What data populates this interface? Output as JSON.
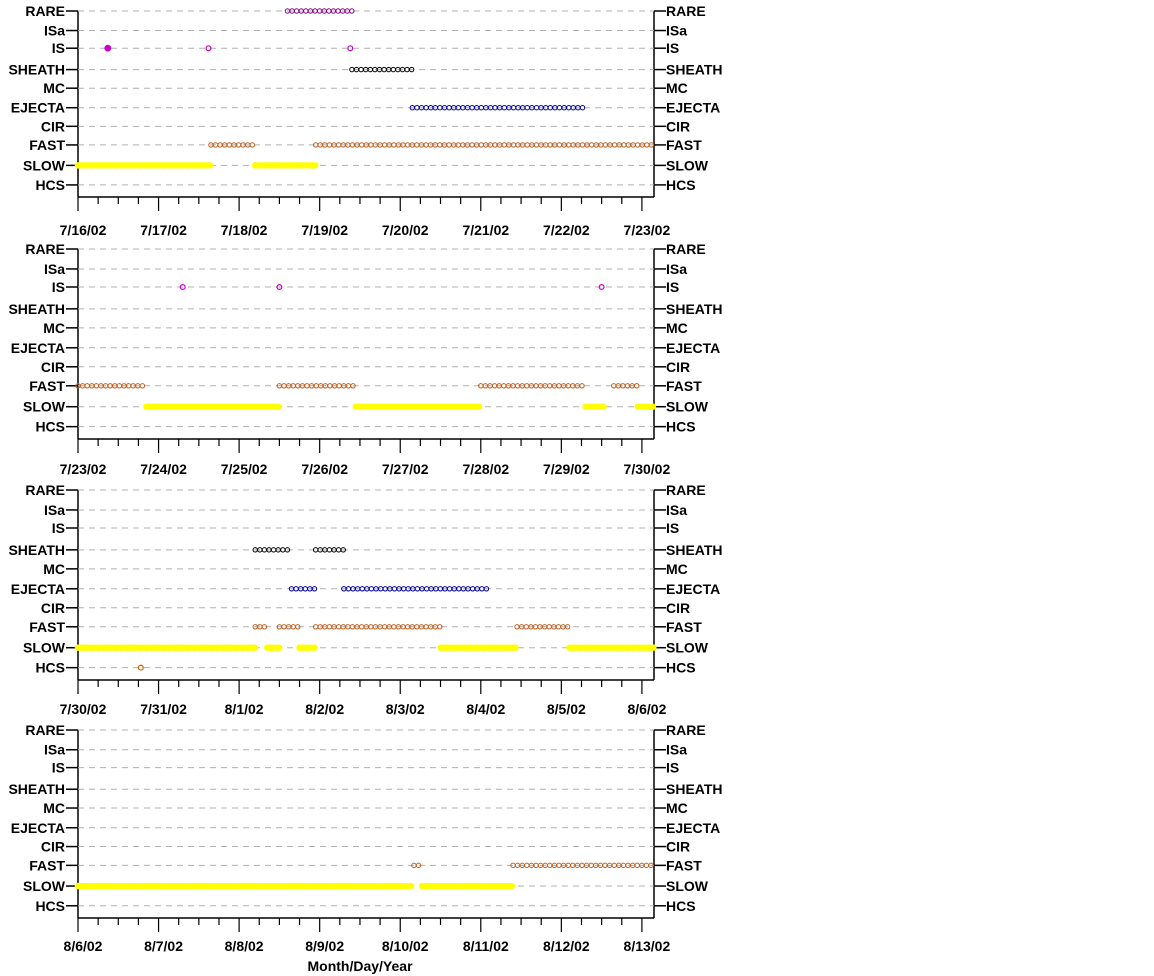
{
  "chart_data": {
    "type": "scatter",
    "categories": [
      "RARE",
      "ISa",
      "IS",
      "SHEATH",
      "MC",
      "EJECTA",
      "CIR",
      "FAST",
      "SLOW",
      "HCS"
    ],
    "xlabel": "Month/Day/Year",
    "grid": true,
    "colors": {
      "RARE": "#800080",
      "IS": "#cc00cc",
      "SHEATH": "#000000",
      "EJECTA": "#0000a0",
      "FAST": "#c06020",
      "SLOW": "#ffff00",
      "HCS": "#d06000"
    },
    "panels": [
      {
        "x_ticks": [
          "7/16/02",
          "7/17/02",
          "7/18/02",
          "7/19/02",
          "7/20/02",
          "7/21/02",
          "7/22/02",
          "7/23/02"
        ],
        "xlim_days": [
          0,
          7.15
        ],
        "series": [
          {
            "category": "RARE",
            "ranges": [
              [
                2.6,
                3.4
              ]
            ]
          },
          {
            "category": "IS",
            "points": [
              0.37
            ],
            "filled": true
          },
          {
            "category": "IS",
            "points": [
              1.62,
              3.38
            ]
          },
          {
            "category": "SHEATH",
            "ranges": [
              [
                3.4,
                4.15
              ]
            ]
          },
          {
            "category": "EJECTA",
            "ranges": [
              [
                4.15,
                6.3
              ]
            ]
          },
          {
            "category": "FAST",
            "ranges": [
              [
                1.65,
                2.2
              ],
              [
                2.95,
                7.15
              ]
            ]
          },
          {
            "category": "SLOW",
            "ranges": [
              [
                0.0,
                1.65
              ],
              [
                2.2,
                2.95
              ]
            ]
          }
        ]
      },
      {
        "x_ticks": [
          "7/23/02",
          "7/24/02",
          "7/25/02",
          "7/26/02",
          "7/27/02",
          "7/28/02",
          "7/29/02",
          "7/30/02"
        ],
        "xlim_days": [
          0,
          7.15
        ],
        "series": [
          {
            "category": "IS",
            "points": [
              1.3,
              2.5,
              6.5
            ]
          },
          {
            "category": "FAST",
            "ranges": [
              [
                0.0,
                0.85
              ],
              [
                2.5,
                3.45
              ],
              [
                5.0,
                6.3
              ],
              [
                6.65,
                6.95
              ]
            ]
          },
          {
            "category": "SLOW",
            "ranges": [
              [
                0.85,
                2.5
              ],
              [
                3.45,
                5.0
              ],
              [
                6.3,
                6.55
              ],
              [
                6.95,
                7.15
              ]
            ]
          }
        ]
      },
      {
        "x_ticks": [
          "7/30/02",
          "7/31/02",
          "8/1/02",
          "8/2/02",
          "8/3/02",
          "8/4/02",
          "8/5/02",
          "8/6/02"
        ],
        "xlim_days": [
          0,
          7.15
        ],
        "series": [
          {
            "category": "SHEATH",
            "ranges": [
              [
                2.2,
                2.65
              ],
              [
                2.95,
                3.3
              ]
            ]
          },
          {
            "category": "EJECTA",
            "ranges": [
              [
                2.65,
                2.95
              ],
              [
                3.3,
                5.1
              ]
            ]
          },
          {
            "category": "FAST",
            "ranges": [
              [
                2.2,
                2.35
              ],
              [
                2.5,
                2.75
              ],
              [
                2.95,
                4.5
              ],
              [
                5.45,
                6.1
              ]
            ]
          },
          {
            "category": "SLOW",
            "ranges": [
              [
                0.0,
                2.2
              ],
              [
                2.35,
                2.5
              ],
              [
                2.75,
                2.95
              ],
              [
                4.5,
                5.45
              ],
              [
                6.1,
                7.15
              ]
            ]
          },
          {
            "category": "HCS",
            "points": [
              0.78
            ]
          }
        ]
      },
      {
        "x_ticks": [
          "8/6/02",
          "8/7/02",
          "8/8/02",
          "8/9/02",
          "8/10/02",
          "8/11/02",
          "8/12/02",
          "8/13/02"
        ],
        "xlim_days": [
          0,
          7.15
        ],
        "series": [
          {
            "category": "FAST",
            "ranges": [
              [
                4.17,
                4.27
              ],
              [
                5.4,
                7.15
              ]
            ]
          },
          {
            "category": "SLOW",
            "ranges": [
              [
                0.0,
                4.17
              ],
              [
                4.27,
                5.4
              ]
            ]
          }
        ]
      }
    ]
  }
}
